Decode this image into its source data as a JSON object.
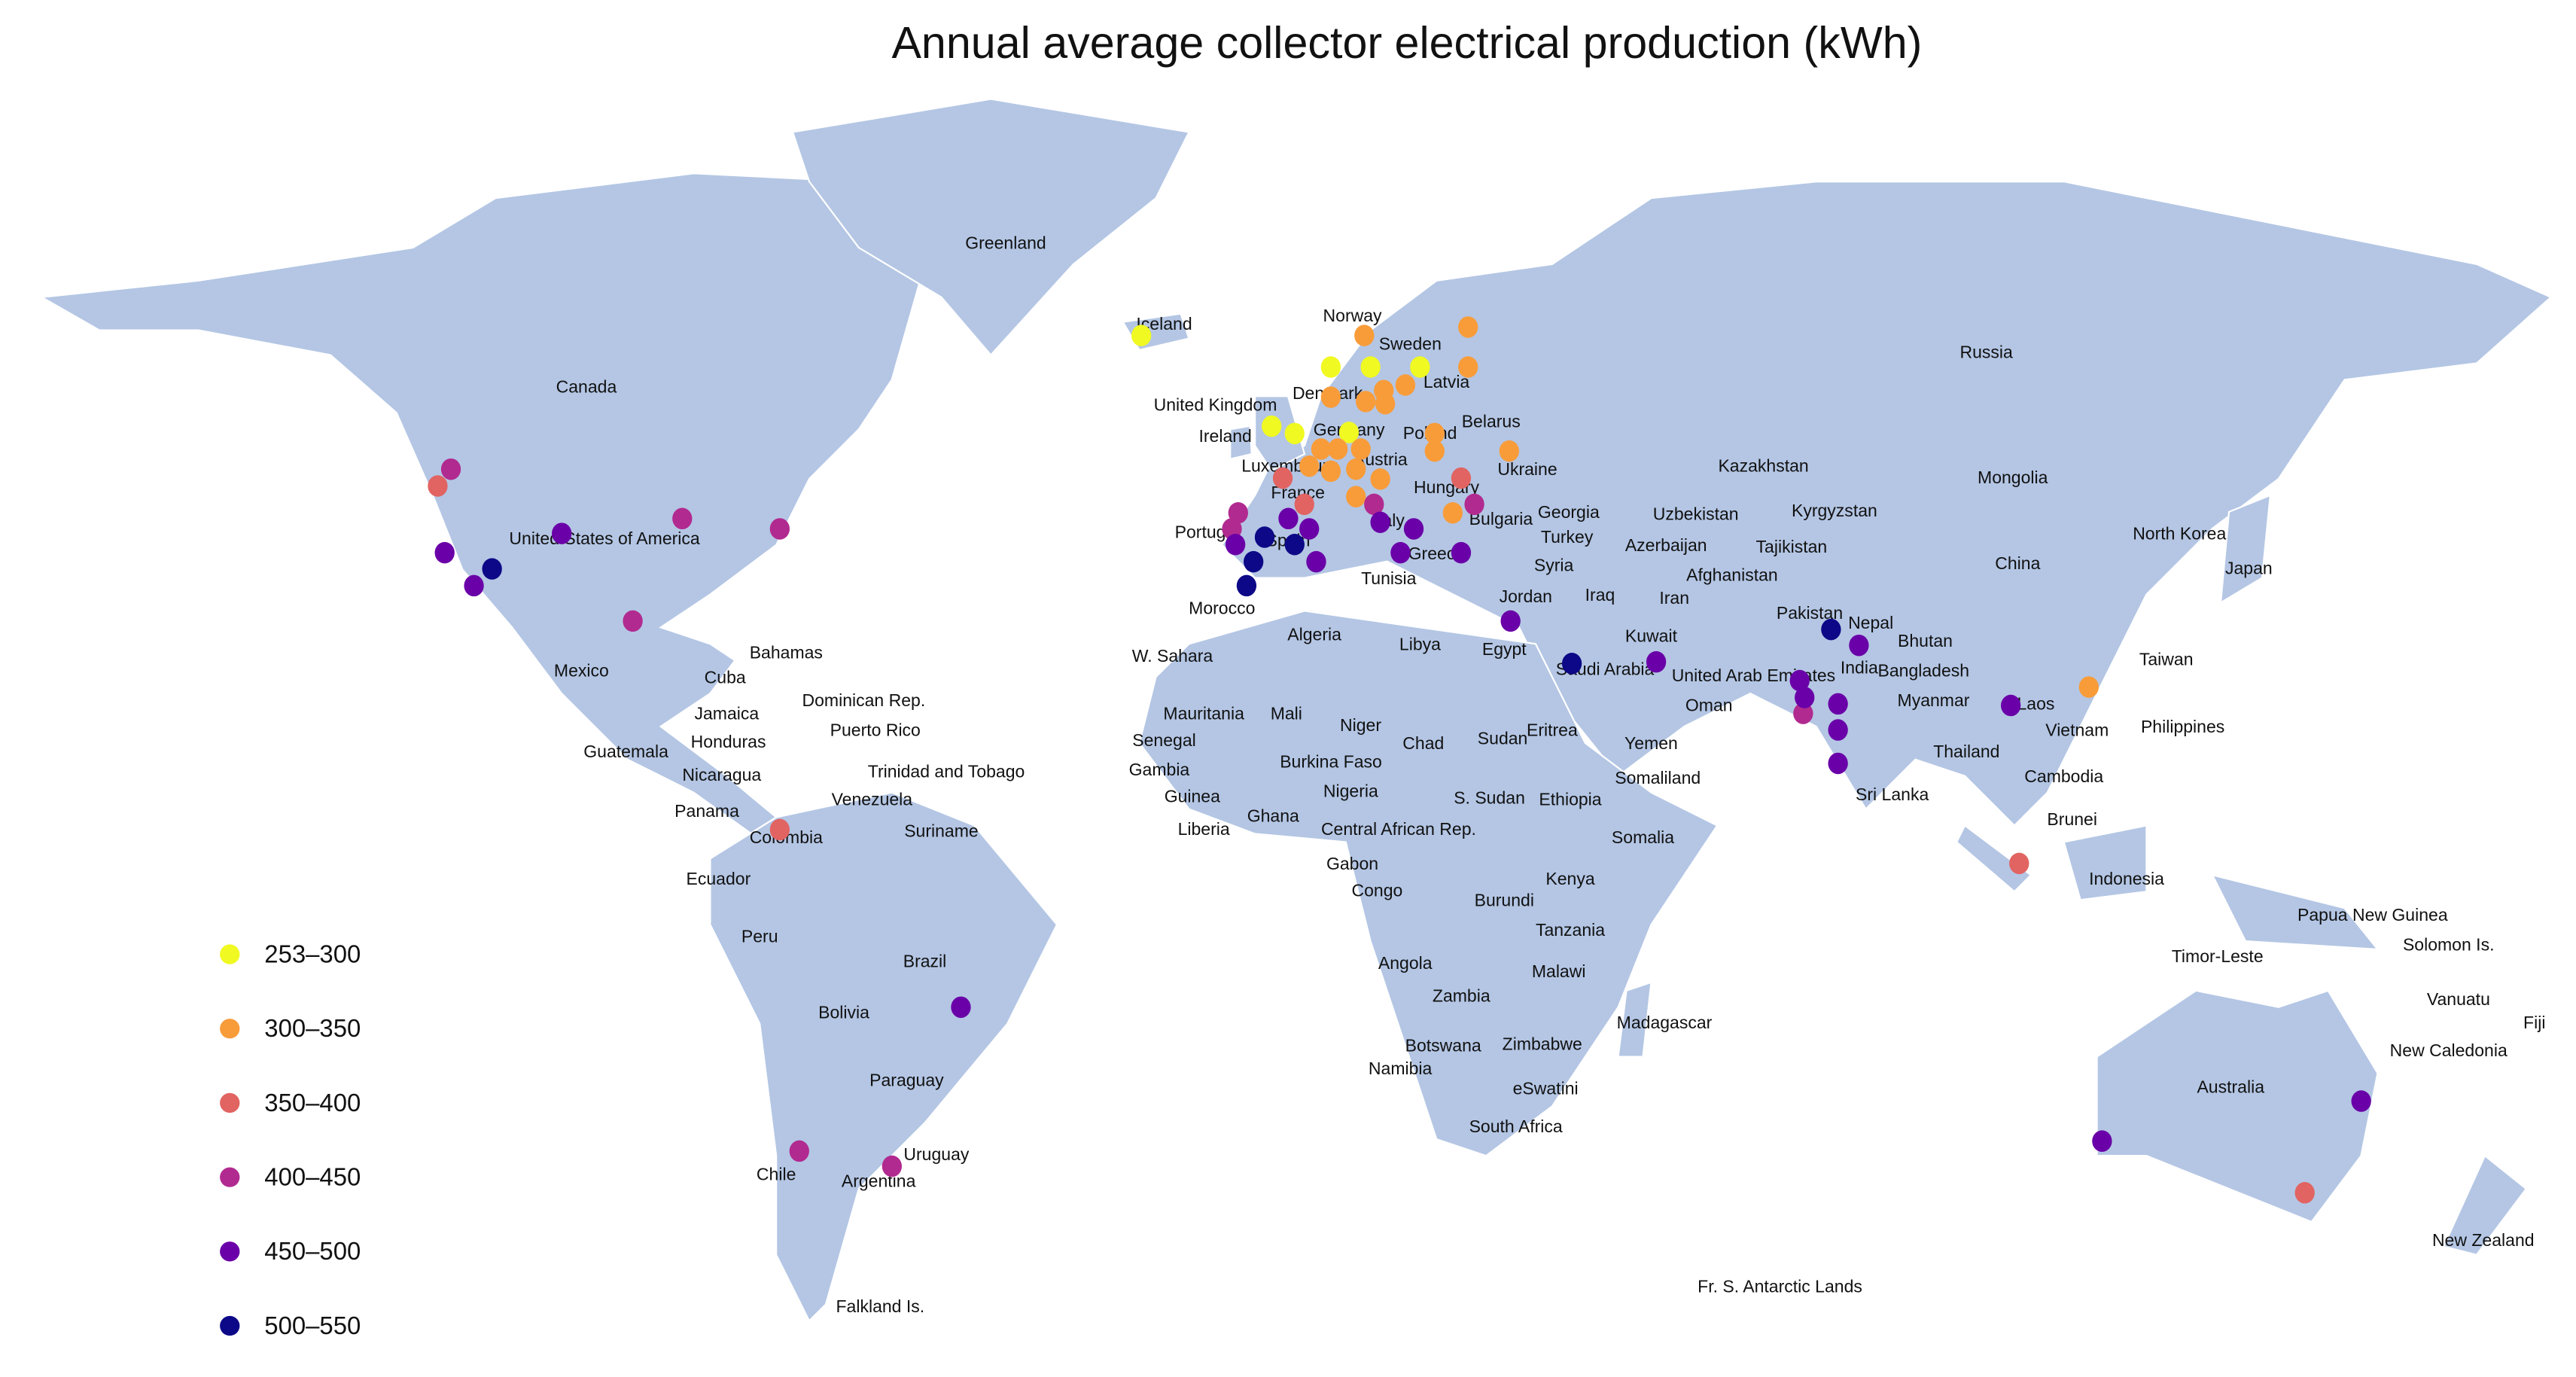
{
  "chart_data": {
    "type": "map",
    "title": "Annual average collector electrical production (kWh)",
    "legend": [
      {
        "label": "253–300",
        "color": "#f0f921"
      },
      {
        "label": "300–350",
        "color": "#f89c3a"
      },
      {
        "label": "350–400",
        "color": "#e16462"
      },
      {
        "label": "400–450",
        "color": "#b12a90"
      },
      {
        "label": "450–500",
        "color": "#6a00a8"
      },
      {
        "label": "500–550",
        "color": "#0d0887"
      }
    ],
    "points": [
      {
        "lon": -22.0,
        "lat": 64.0,
        "bin": 0
      },
      {
        "lon": 5.2,
        "lat": 61.3,
        "bin": 0
      },
      {
        "lon": 10.9,
        "lat": 61.3,
        "bin": 0
      },
      {
        "lon": 18.0,
        "lat": 61.3,
        "bin": 0
      },
      {
        "lon": -3.3,
        "lat": 55.9,
        "bin": 0
      },
      {
        "lon": 0,
        "lat": 55.2,
        "bin": 0
      },
      {
        "lon": 7.8,
        "lat": 55.3,
        "bin": 0
      },
      {
        "lon": 10.0,
        "lat": 64.0,
        "bin": 1
      },
      {
        "lon": 24.9,
        "lat": 64.7,
        "bin": 1
      },
      {
        "lon": 24.9,
        "lat": 61.3,
        "bin": 1
      },
      {
        "lon": 15.9,
        "lat": 59.7,
        "bin": 1
      },
      {
        "lon": 12.8,
        "lat": 59.2,
        "bin": 1
      },
      {
        "lon": 5.2,
        "lat": 58.6,
        "bin": 1
      },
      {
        "lon": 10.2,
        "lat": 58.2,
        "bin": 1
      },
      {
        "lon": 13.0,
        "lat": 58.0,
        "bin": 1
      },
      {
        "lon": 20.1,
        "lat": 55.2,
        "bin": 1
      },
      {
        "lon": 20.1,
        "lat": 53.5,
        "bin": 1
      },
      {
        "lon": 30.8,
        "lat": 53.5,
        "bin": 1
      },
      {
        "lon": 3.8,
        "lat": 53.7,
        "bin": 1
      },
      {
        "lon": 6.2,
        "lat": 53.7,
        "bin": 1
      },
      {
        "lon": 9.5,
        "lat": 53.7,
        "bin": 1
      },
      {
        "lon": 2.1,
        "lat": 52.0,
        "bin": 1
      },
      {
        "lon": 5.2,
        "lat": 51.5,
        "bin": 1
      },
      {
        "lon": 8.8,
        "lat": 51.7,
        "bin": 1
      },
      {
        "lon": 12.3,
        "lat": 50.7,
        "bin": 1
      },
      {
        "lon": 8.8,
        "lat": 48.9,
        "bin": 1
      },
      {
        "lon": 22.7,
        "lat": 47.2,
        "bin": 1
      },
      {
        "lon": 114.0,
        "lat": 27.1,
        "bin": 1
      },
      {
        "lon": -123.0,
        "lat": 50.0,
        "bin": 2
      },
      {
        "lon": 23.9,
        "lat": 50.8,
        "bin": 2
      },
      {
        "lon": -1.7,
        "lat": 50.8,
        "bin": 2
      },
      {
        "lon": 1.4,
        "lat": 48.1,
        "bin": 2
      },
      {
        "lon": -73.9,
        "lat": 8.7,
        "bin": 2
      },
      {
        "lon": 104.0,
        "lat": 4.2,
        "bin": 2
      },
      {
        "lon": 145.0,
        "lat": -37.9,
        "bin": 2
      },
      {
        "lon": -121.1,
        "lat": 51.7,
        "bin": 3
      },
      {
        "lon": -87.9,
        "lat": 46.6,
        "bin": 3
      },
      {
        "lon": -73.9,
        "lat": 45.5,
        "bin": 3
      },
      {
        "lon": -95.0,
        "lat": 35.1,
        "bin": 3
      },
      {
        "lon": -8.1,
        "lat": 47.2,
        "bin": 3
      },
      {
        "lon": -9.0,
        "lat": 45.5,
        "bin": 3
      },
      {
        "lon": 11.4,
        "lat": 48.1,
        "bin": 3
      },
      {
        "lon": 25.8,
        "lat": 48.1,
        "bin": 3
      },
      {
        "lon": 73.0,
        "lat": 23.8,
        "bin": 3
      },
      {
        "lon": -71.1,
        "lat": -33.0,
        "bin": 3
      },
      {
        "lon": -57.8,
        "lat": -34.8,
        "bin": 3
      },
      {
        "lon": -105.2,
        "lat": 45.0,
        "bin": 4
      },
      {
        "lon": -122.0,
        "lat": 42.9,
        "bin": 4
      },
      {
        "lon": -117.8,
        "lat": 39.2,
        "bin": 4
      },
      {
        "lon": -8.5,
        "lat": 43.8,
        "bin": 4
      },
      {
        "lon": -0.9,
        "lat": 46.6,
        "bin": 4
      },
      {
        "lon": 2.1,
        "lat": 45.5,
        "bin": 4
      },
      {
        "lon": 3.1,
        "lat": 41.9,
        "bin": 4
      },
      {
        "lon": 12.3,
        "lat": 46.2,
        "bin": 4
      },
      {
        "lon": 17.1,
        "lat": 45.5,
        "bin": 4
      },
      {
        "lon": 15.2,
        "lat": 42.9,
        "bin": 4
      },
      {
        "lon": 23.9,
        "lat": 42.9,
        "bin": 4
      },
      {
        "lon": 31.0,
        "lat": 35.1,
        "bin": 4
      },
      {
        "lon": 51.9,
        "lat": 30.2,
        "bin": 4
      },
      {
        "lon": 72.5,
        "lat": 27.9,
        "bin": 4
      },
      {
        "lon": 73.2,
        "lat": 25.8,
        "bin": 4
      },
      {
        "lon": 78.0,
        "lat": 25.0,
        "bin": 4
      },
      {
        "lon": 78.0,
        "lat": 21.7,
        "bin": 4
      },
      {
        "lon": 78.0,
        "lat": 17.4,
        "bin": 4
      },
      {
        "lon": 81.0,
        "lat": 32.2,
        "bin": 4
      },
      {
        "lon": 102.8,
        "lat": 24.8,
        "bin": 4
      },
      {
        "lon": -47.9,
        "lat": -14.9,
        "bin": 4
      },
      {
        "lon": 153.1,
        "lat": -26.9,
        "bin": 4
      },
      {
        "lon": 115.9,
        "lat": -31.8,
        "bin": 4
      },
      {
        "lon": -115.2,
        "lat": 41.1,
        "bin": 5
      },
      {
        "lon": -4.3,
        "lat": 44.6,
        "bin": 5
      },
      {
        "lon": 0,
        "lat": 43.8,
        "bin": 5
      },
      {
        "lon": -5.9,
        "lat": 41.9,
        "bin": 5
      },
      {
        "lon": -6.9,
        "lat": 39.2,
        "bin": 5
      },
      {
        "lon": 39.8,
        "lat": 30.0,
        "bin": 5
      },
      {
        "lon": 77.0,
        "lat": 34.1,
        "bin": 5
      }
    ],
    "labels": [
      "Greenland",
      "Canada",
      "Iceland",
      "Norway",
      "Sweden",
      "Russia",
      "Denmark",
      "Latvia",
      "United Kingdom",
      "Belarus",
      "Ireland",
      "Germany",
      "Poland",
      "Austria",
      "Luxembourg",
      "Ukraine",
      "France",
      "Hungary",
      "Kazakhstan",
      "Mongolia",
      "Georgia",
      "Bulgaria",
      "Uzbekistan",
      "Kyrgyzstan",
      "Portugal",
      "Spain",
      "Italy",
      "Turkey",
      "Azerbaijan",
      "Tajikistan",
      "North Korea",
      "United States of America",
      "Greece",
      "Syria",
      "Afghanistan",
      "Japan",
      "China",
      "Tunisia",
      "Iraq",
      "Iran",
      "Jordan",
      "Morocco",
      "Pakistan",
      "Nepal",
      "Bhutan",
      "Kuwait",
      "Algeria",
      "Libya",
      "Egypt",
      "Saudi Arabia",
      "United Arab Emirates",
      "India",
      "Bangladesh",
      "Taiwan",
      "Mexico",
      "Bahamas",
      "Cuba",
      "W. Sahara",
      "Oman",
      "Myanmar",
      "Laos",
      "Dominican Rep.",
      "Jamaica",
      "Mauritania",
      "Mali",
      "Niger",
      "Eritrea",
      "Sudan",
      "Vietnam",
      "Philippines",
      "Puerto Rico",
      "Honduras",
      "Senegal",
      "Chad",
      "Yemen",
      "Thailand",
      "Guatemala",
      "Nicaragua",
      "Trinidad and Tobago",
      "Gambia",
      "Burkina Faso",
      "Somaliland",
      "Cambodia",
      "Guinea",
      "Nigeria",
      "S. Sudan",
      "Ethiopia",
      "Sri Lanka",
      "Venezuela",
      "Panama",
      "Ghana",
      "Brunei",
      "Liberia",
      "Central African Rep.",
      "Suriname",
      "Colombia",
      "Somalia",
      "Gabon",
      "Ecuador",
      "Kenya",
      "Indonesia",
      "Congo",
      "Burundi",
      "Papua New Guinea",
      "Peru",
      "Tanzania",
      "Solomon Is.",
      "Brazil",
      "Timor-Leste",
      "Angola",
      "Malawi",
      "Zambia",
      "Vanuatu",
      "Bolivia",
      "Madagascar",
      "Fiji",
      "Zimbabwe",
      "Botswana",
      "New Caledonia",
      "Namibia",
      "Paraguay",
      "Australia",
      "eSwatini",
      "South Africa",
      "Uruguay",
      "Chile",
      "Argentina",
      "New Zealand",
      "Fr. S. Antarctic Lands",
      "Falkland Is."
    ]
  }
}
